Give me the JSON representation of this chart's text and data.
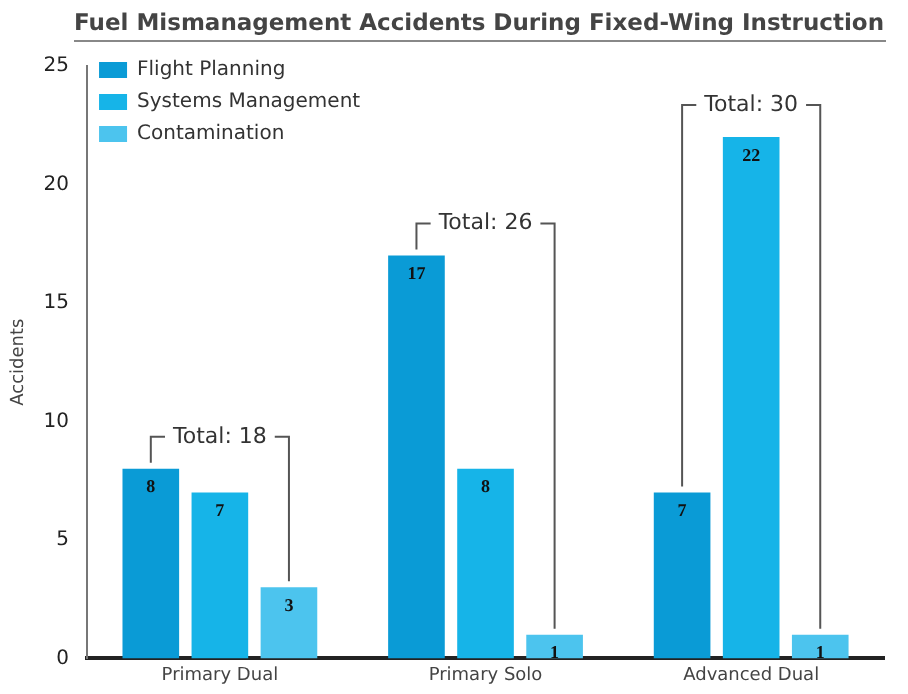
{
  "chart_data": {
    "type": "bar",
    "title": "Fuel Mismanagement Accidents During Fixed-Wing Instruction",
    "ylabel": "Accidents",
    "categories": [
      "Primary Dual",
      "Primary Solo",
      "Advanced Dual"
    ],
    "series": [
      {
        "name": "Flight Planning",
        "color": "#0a9bd6",
        "values": [
          8,
          17,
          7
        ]
      },
      {
        "name": "Systems Management",
        "color": "#16b4e8",
        "values": [
          7,
          8,
          22
        ]
      },
      {
        "name": "Contamination",
        "color": "#4cc4ee",
        "values": [
          3,
          1,
          1
        ]
      }
    ],
    "ylim": [
      0,
      25
    ],
    "yticks": [
      0,
      5,
      10,
      15,
      20,
      25
    ],
    "grid": false,
    "legend": "top left",
    "data_labels": true,
    "totals": [
      "Total: 18",
      "Total: 26",
      "Total: 30"
    ]
  }
}
